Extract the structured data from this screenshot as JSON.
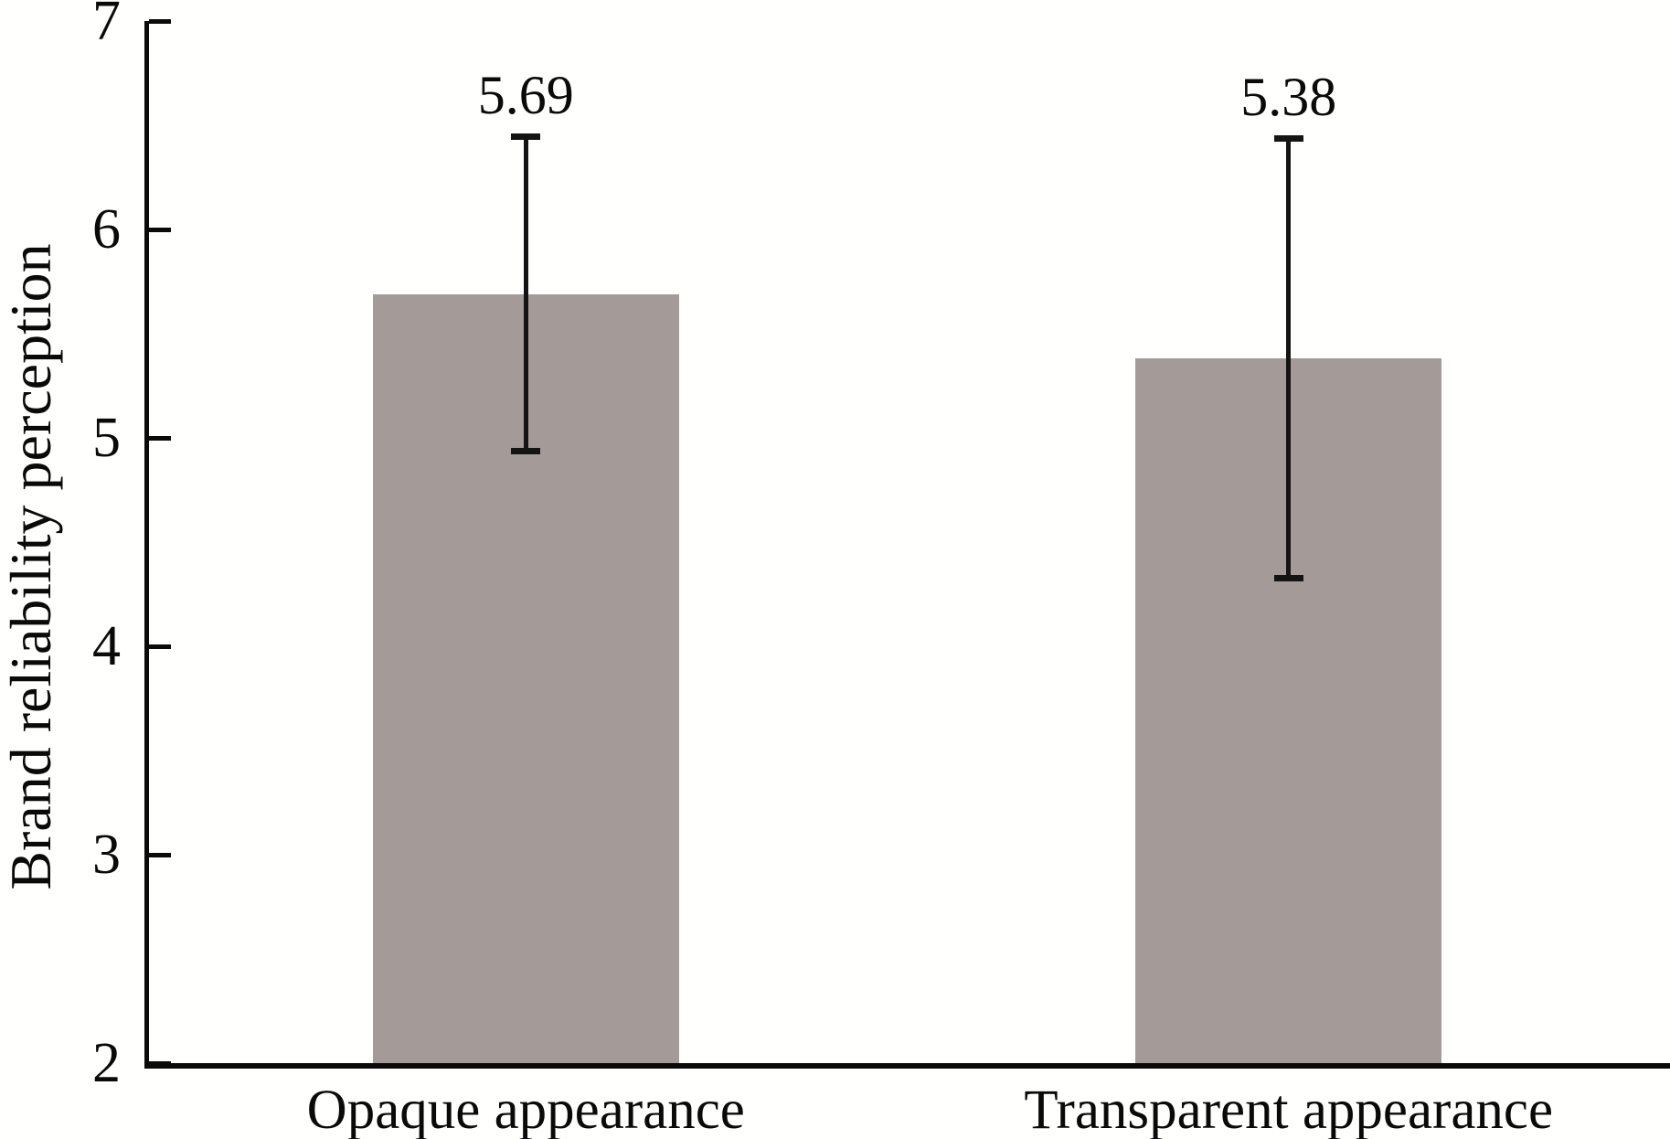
{
  "figure": {
    "background": "#fffffe"
  },
  "chart_data": {
    "type": "bar",
    "title": "",
    "categories": [
      "Opaque appearance",
      "Transparent appearance"
    ],
    "values": [
      5.69,
      5.38
    ],
    "data_labels": [
      "5.69",
      "5.38"
    ],
    "error_bars": [
      {
        "upper": 6.46,
        "lower": 4.92
      },
      {
        "upper": 6.45,
        "lower": 4.31
      }
    ],
    "xlabel": "",
    "ylabel": "Brand reliability perception",
    "ylim": [
      2,
      7
    ],
    "yticks": [
      2,
      3,
      4,
      5,
      6,
      7
    ],
    "grid": false,
    "legend_position": "none",
    "bar_color": "#A49B98",
    "axis_color": "#0a0a0a",
    "text_color": "#0a0a0a"
  }
}
